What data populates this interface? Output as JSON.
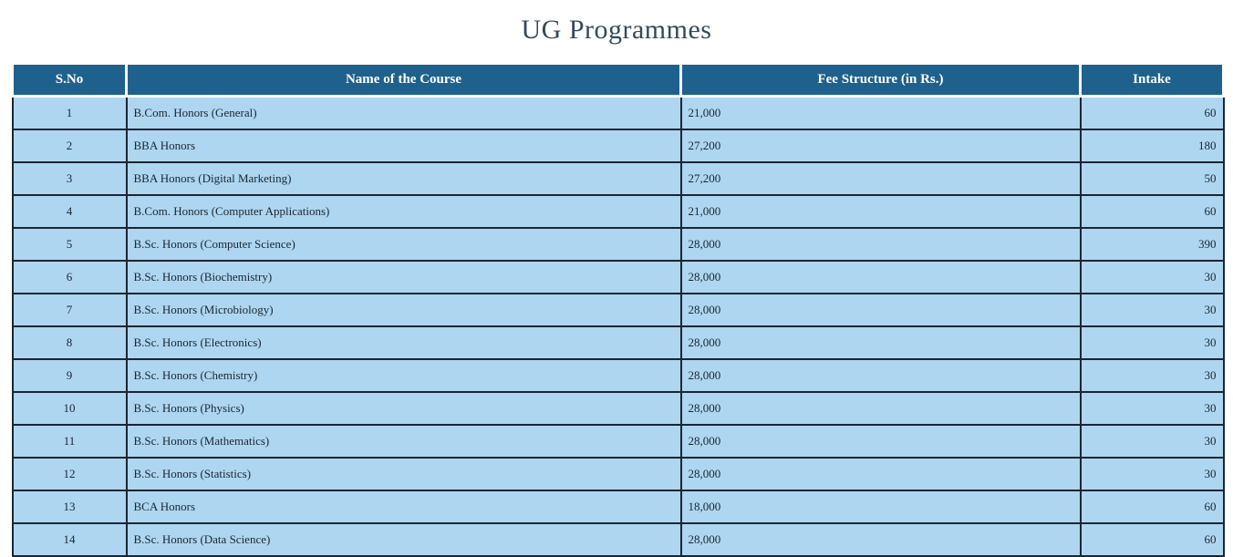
{
  "page": {
    "title": "UG Programmes"
  },
  "colors": {
    "header_bg": "#1F618D",
    "header_text": "#FFFFFF",
    "row_bg": "#AED6F1",
    "row_text": "#1B2631",
    "grid_border": "#1B2631",
    "title_text": "#34495E",
    "page_bg": "#FFFFFF"
  },
  "table": {
    "columns": [
      {
        "key": "sno",
        "label": "S.No"
      },
      {
        "key": "name",
        "label": "Name of the Course"
      },
      {
        "key": "fee",
        "label": "Fee Structure (in Rs.)"
      },
      {
        "key": "intake",
        "label": "Intake"
      }
    ],
    "rows": [
      {
        "sno": "1",
        "name": "B.Com. Honors (General)",
        "fee": "21,000",
        "intake": "60"
      },
      {
        "sno": "2",
        "name": "BBA Honors",
        "fee": "27,200",
        "intake": "180"
      },
      {
        "sno": "3",
        "name": "BBA Honors (Digital Marketing)",
        "fee": "27,200",
        "intake": "50"
      },
      {
        "sno": "4",
        "name": "B.Com. Honors (Computer Applications)",
        "fee": "21,000",
        "intake": "60"
      },
      {
        "sno": "5",
        "name": "B.Sc. Honors (Computer Science)",
        "fee": "28,000",
        "intake": "390"
      },
      {
        "sno": "6",
        "name": "B.Sc. Honors (Biochemistry)",
        "fee": "28,000",
        "intake": "30"
      },
      {
        "sno": "7",
        "name": "B.Sc. Honors (Microbiology)",
        "fee": "28,000",
        "intake": "30"
      },
      {
        "sno": "8",
        "name": "B.Sc. Honors (Electronics)",
        "fee": "28,000",
        "intake": "30"
      },
      {
        "sno": "9",
        "name": "B.Sc. Honors (Chemistry)",
        "fee": "28,000",
        "intake": "30"
      },
      {
        "sno": "10",
        "name": "B.Sc. Honors (Physics)",
        "fee": "28,000",
        "intake": "30"
      },
      {
        "sno": "11",
        "name": "B.Sc. Honors (Mathematics)",
        "fee": "28,000",
        "intake": "30"
      },
      {
        "sno": "12",
        "name": "B.Sc. Honors (Statistics)",
        "fee": "28,000",
        "intake": "30"
      },
      {
        "sno": "13",
        "name": "BCA Honors",
        "fee": "18,000",
        "intake": "60"
      },
      {
        "sno": "14",
        "name": "B.Sc. Honors (Data Science)",
        "fee": "28,000",
        "intake": "60"
      }
    ]
  }
}
